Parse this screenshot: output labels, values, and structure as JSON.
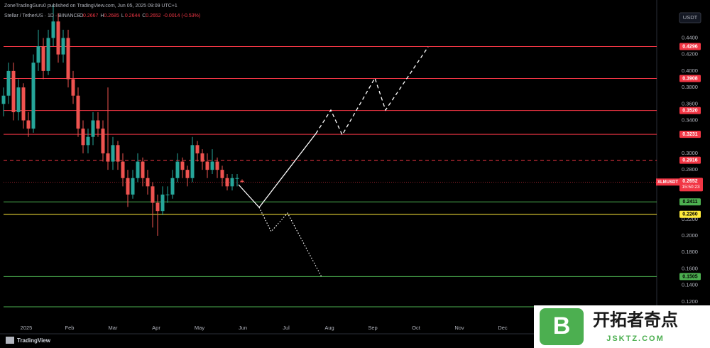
{
  "header": {
    "published": "ZoneTradingGuru0 published on TradingView.com, Jun 05, 2025 09:09 UTC+1",
    "symbol": "Stellar / TetherUS · 1D · BINANCE",
    "ohlc": [
      "O",
      "0.2667",
      "H",
      "0.2685",
      "L",
      "0.2644",
      "C",
      "0.2652",
      "-0.0014 (-0.53%)"
    ],
    "currency_button": "USDT",
    "brand": "TradingView"
  },
  "watermark": {
    "title": "开拓者奇点",
    "site": "JSKTZ.COM"
  },
  "chart_data": {
    "type": "candlestick",
    "up_color": "#26a69a",
    "down_color": "#ef5350",
    "time_labels": [
      "2025",
      "Feb",
      "Mar",
      "Apr",
      "May",
      "Jun",
      "Jul",
      "Aug",
      "Sep",
      "Oct",
      "Nov",
      "Dec"
    ],
    "open": [
      0.36,
      0.37,
      0.4,
      0.35,
      0.38,
      0.34,
      0.33,
      0.41,
      0.43,
      0.4,
      0.44,
      0.46,
      0.42,
      0.44,
      0.39,
      0.37,
      0.33,
      0.31,
      0.32,
      0.34,
      0.33,
      0.3,
      0.29,
      0.31,
      0.29,
      0.27,
      0.25,
      0.27,
      0.29,
      0.27,
      0.26,
      0.24,
      0.23,
      0.25,
      0.25,
      0.27,
      0.29,
      0.28,
      0.27,
      0.31,
      0.3,
      0.29,
      0.28,
      0.29,
      0.28,
      0.27,
      0.26,
      0.27,
      0.2667
    ],
    "high": [
      0.38,
      0.41,
      0.41,
      0.39,
      0.385,
      0.35,
      0.42,
      0.45,
      0.44,
      0.45,
      0.48,
      0.47,
      0.45,
      0.45,
      0.4,
      0.38,
      0.34,
      0.33,
      0.35,
      0.35,
      0.34,
      0.38,
      0.32,
      0.315,
      0.3,
      0.28,
      0.28,
      0.3,
      0.295,
      0.28,
      0.265,
      0.25,
      0.26,
      0.26,
      0.28,
      0.3,
      0.295,
      0.285,
      0.32,
      0.315,
      0.305,
      0.3,
      0.305,
      0.295,
      0.285,
      0.275,
      0.275,
      0.275,
      0.2685
    ],
    "low": [
      0.345,
      0.36,
      0.34,
      0.34,
      0.33,
      0.32,
      0.325,
      0.4,
      0.39,
      0.395,
      0.43,
      0.41,
      0.41,
      0.38,
      0.36,
      0.32,
      0.3,
      0.3,
      0.31,
      0.32,
      0.29,
      0.28,
      0.28,
      0.28,
      0.26,
      0.235,
      0.245,
      0.265,
      0.26,
      0.25,
      0.21,
      0.2,
      0.225,
      0.24,
      0.245,
      0.265,
      0.27,
      0.26,
      0.265,
      0.29,
      0.28,
      0.27,
      0.275,
      0.27,
      0.26,
      0.255,
      0.255,
      0.26,
      0.2644
    ],
    "close": [
      0.37,
      0.4,
      0.35,
      0.38,
      0.34,
      0.33,
      0.41,
      0.43,
      0.4,
      0.44,
      0.46,
      0.42,
      0.44,
      0.39,
      0.37,
      0.33,
      0.31,
      0.32,
      0.34,
      0.33,
      0.3,
      0.29,
      0.31,
      0.29,
      0.27,
      0.25,
      0.27,
      0.29,
      0.27,
      0.26,
      0.24,
      0.23,
      0.25,
      0.25,
      0.27,
      0.29,
      0.28,
      0.27,
      0.31,
      0.3,
      0.29,
      0.28,
      0.29,
      0.28,
      0.27,
      0.26,
      0.27,
      0.27,
      0.2652
    ],
    "ylim": [
      0.094,
      0.474
    ],
    "yticks": [
      {
        "value": 0.44,
        "label": "0.4400"
      },
      {
        "value": 0.42,
        "label": "0.4200"
      },
      {
        "value": 0.4,
        "label": "0.4000"
      },
      {
        "value": 0.38,
        "label": "0.3800"
      },
      {
        "value": 0.36,
        "label": "0.3600"
      },
      {
        "value": 0.34,
        "label": "0.3400"
      },
      {
        "value": 0.3,
        "label": "0.3000"
      },
      {
        "value": 0.28,
        "label": "0.2800"
      },
      {
        "value": 0.22,
        "label": "0.2200"
      },
      {
        "value": 0.2,
        "label": "0.2000"
      },
      {
        "value": 0.18,
        "label": "0.1800"
      },
      {
        "value": 0.16,
        "label": "0.1600"
      },
      {
        "value": 0.14,
        "label": "0.1400"
      },
      {
        "value": 0.12,
        "label": "0.1200"
      }
    ],
    "levels": [
      {
        "value": 0.4296,
        "label": "0.4296",
        "color": "#f23645"
      },
      {
        "value": 0.3908,
        "label": "0.3908",
        "color": "#f23645"
      },
      {
        "value": 0.352,
        "label": "0.3520",
        "color": "#f23645"
      },
      {
        "value": 0.3231,
        "label": "0.3231",
        "color": "#f23645"
      },
      {
        "value": 0.2916,
        "label": "0.2916",
        "color": "#f23645",
        "dashed": true
      },
      {
        "value": 0.2411,
        "label": "0.2411",
        "color": "#4caf50"
      },
      {
        "value": 0.226,
        "label": "0.2260",
        "color": "#ffeb3b"
      },
      {
        "value": 0.1505,
        "label": "0.1505",
        "color": "#4caf50"
      },
      {
        "value": 0.1138,
        "color": "#4caf50"
      }
    ],
    "last_price": {
      "symbol": "XLMUSDT",
      "value": 0.2652,
      "label": "0.2652",
      "countdown": "15:50:23",
      "color": "#f23645"
    }
  }
}
